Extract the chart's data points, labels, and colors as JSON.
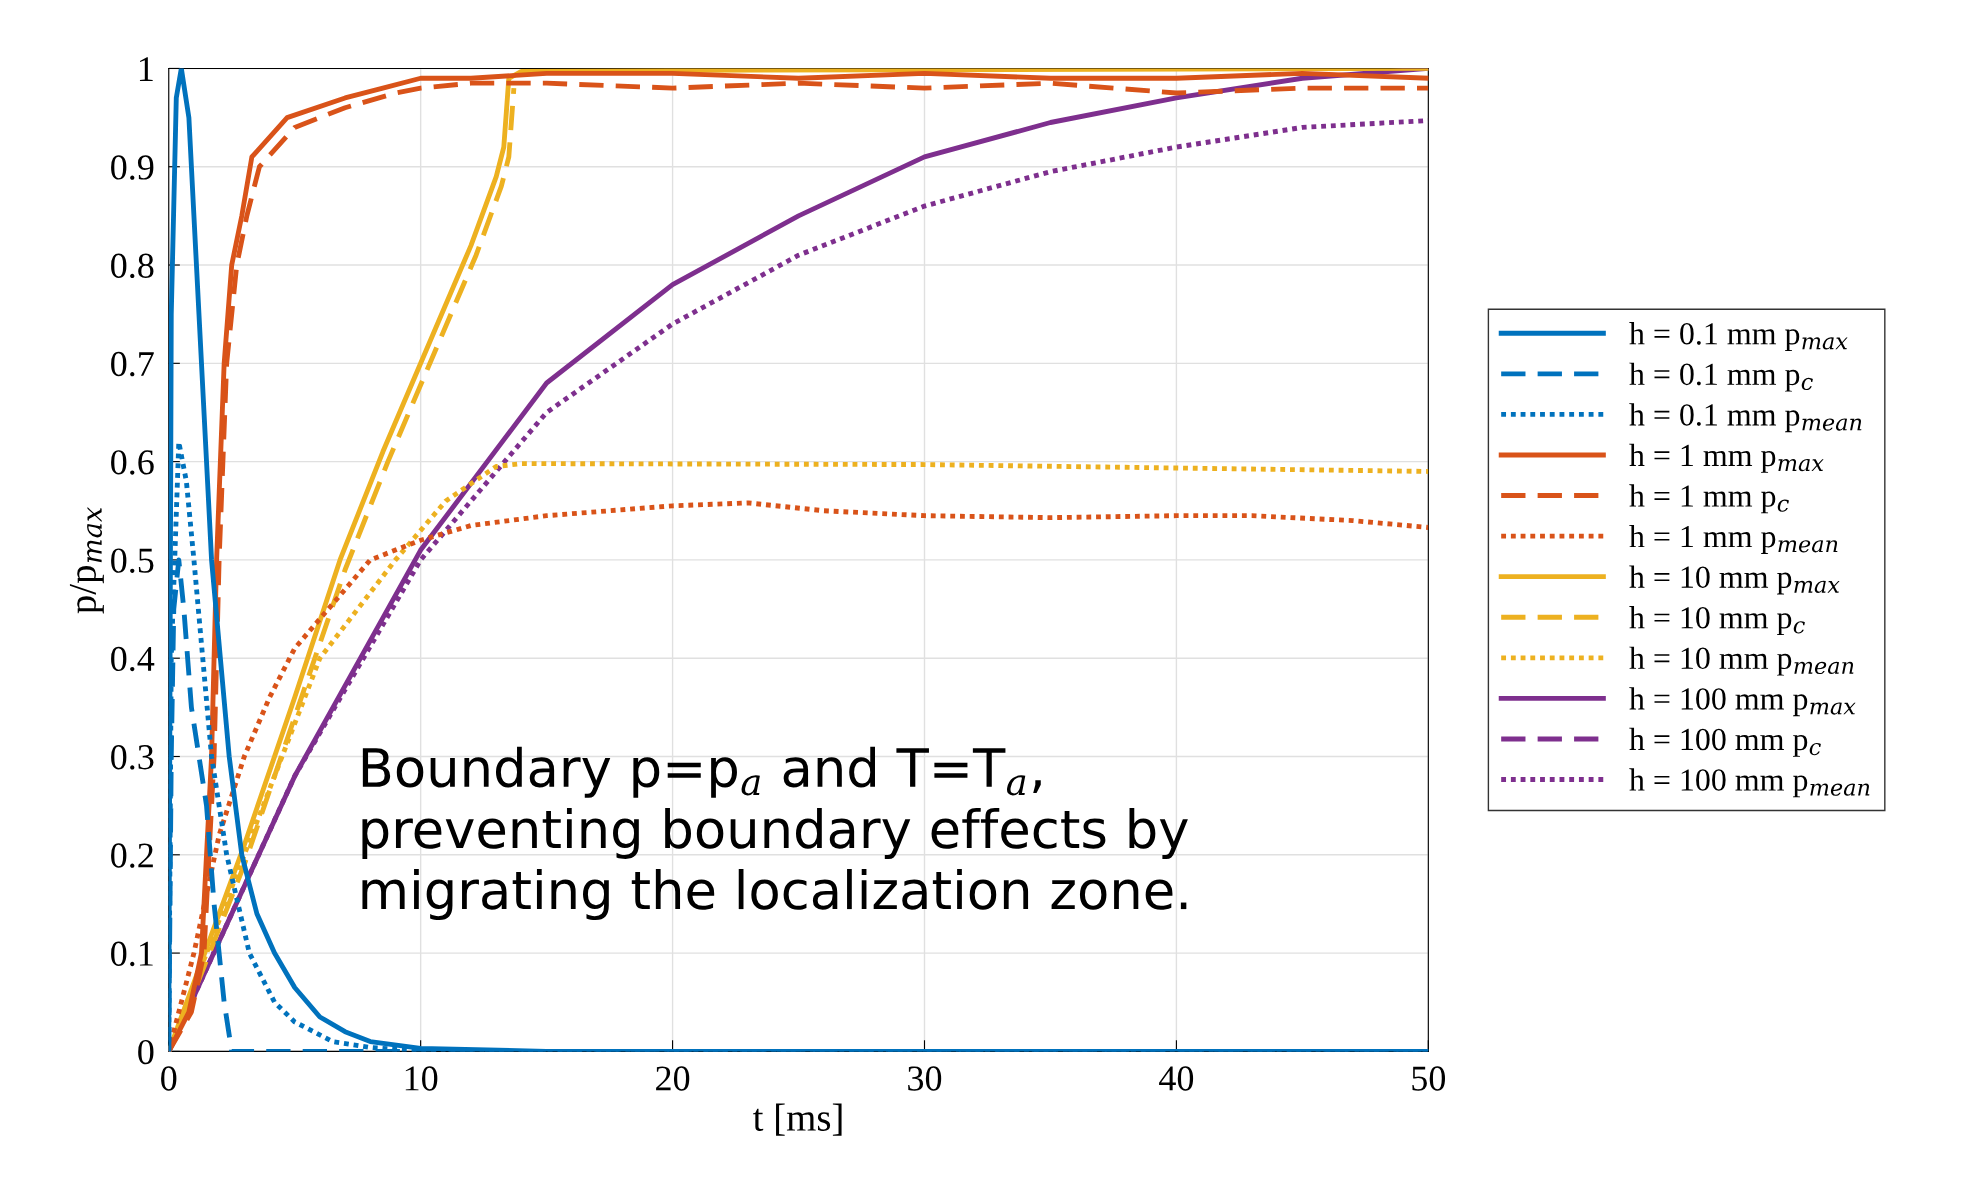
{
  "chart_data": {
    "type": "line",
    "xlabel": "t [ms]",
    "ylabel": "p/p$_{max}$",
    "xlim": [
      0,
      50
    ],
    "xticks": [
      0,
      10,
      20,
      30,
      40,
      50
    ],
    "ylim": [
      0,
      1
    ],
    "yticks": [
      0,
      0.1,
      0.2,
      0.3,
      0.4,
      0.5,
      0.6,
      0.7,
      0.8,
      0.9,
      1
    ],
    "grid": true,
    "legend": "right",
    "marker": "none",
    "annotations": [
      "Boundary p=p$_{a}$ and T=T$_{a}$,\npreventing boundary effects by\nmigrating the localization zone."
    ],
    "series": [
      {
        "name": "h = 0.1 mm p$_{max}$",
        "color": "#0072bd",
        "line_style": "solid",
        "x": [
          0,
          0.1,
          0.3,
          0.5,
          0.8,
          1.2,
          1.7,
          2.4,
          2.9,
          3.5,
          4.2,
          5,
          6,
          7,
          8,
          10,
          15,
          50
        ],
        "values": [
          0,
          0.75,
          0.97,
          1.0,
          0.95,
          0.75,
          0.5,
          0.3,
          0.2,
          0.14,
          0.1,
          0.065,
          0.035,
          0.02,
          0.01,
          0.003,
          0,
          0
        ]
      },
      {
        "name": "h = 0.1 mm p$_{c}$",
        "color": "#0072bd",
        "line_style": "dashed",
        "x": [
          0,
          0.1,
          0.2,
          0.4,
          0.6,
          0.9,
          1.2,
          1.5,
          1.8,
          2.2,
          2.5,
          50
        ],
        "values": [
          0,
          0.3,
          0.45,
          0.5,
          0.45,
          0.35,
          0.3,
          0.25,
          0.15,
          0.05,
          0,
          0
        ]
      },
      {
        "name": "h = 0.1 mm p$_{mean}$",
        "color": "#0072bd",
        "line_style": "dotted",
        "x": [
          0,
          0.1,
          0.4,
          0.7,
          1.0,
          1.7,
          2.3,
          3.2,
          4.2,
          5,
          6.5,
          8,
          10,
          50
        ],
        "values": [
          0,
          0.4,
          0.62,
          0.58,
          0.5,
          0.3,
          0.2,
          0.1,
          0.05,
          0.03,
          0.01,
          0.004,
          0,
          0
        ]
      },
      {
        "name": "h = 1 mm p$_{max}$",
        "color": "#d95319",
        "line_style": "solid",
        "x": [
          0,
          0.8,
          1.3,
          1.7,
          1.9,
          2.2,
          2.5,
          2.9,
          3.3,
          4.7,
          7,
          8.5,
          10,
          12,
          15,
          20,
          25,
          30,
          35,
          40,
          45,
          50
        ],
        "values": [
          0,
          0.04,
          0.1,
          0.3,
          0.5,
          0.7,
          0.8,
          0.85,
          0.91,
          0.95,
          0.97,
          0.98,
          0.99,
          0.99,
          0.995,
          0.995,
          0.99,
          0.995,
          0.99,
          0.99,
          0.995,
          0.99
        ]
      },
      {
        "name": "h = 1 mm p$_{c}$",
        "color": "#d95319",
        "line_style": "dashed",
        "x": [
          0,
          0.9,
          1.4,
          1.8,
          2.0,
          2.3,
          2.7,
          3.1,
          3.6,
          5,
          7,
          9,
          10,
          12,
          15,
          20,
          25,
          30,
          35,
          40,
          45,
          50
        ],
        "values": [
          0,
          0.04,
          0.1,
          0.3,
          0.5,
          0.7,
          0.8,
          0.85,
          0.9,
          0.94,
          0.96,
          0.975,
          0.98,
          0.985,
          0.985,
          0.98,
          0.985,
          0.98,
          0.985,
          0.975,
          0.98,
          0.98
        ]
      },
      {
        "name": "h = 1 mm p$_{mean}$",
        "color": "#d95319",
        "line_style": "dotted",
        "x": [
          0,
          1,
          2,
          3,
          4,
          5,
          6,
          7,
          8,
          10,
          12,
          15,
          20,
          23,
          26,
          30,
          35,
          40,
          43,
          47,
          50
        ],
        "values": [
          0,
          0.1,
          0.22,
          0.3,
          0.36,
          0.41,
          0.44,
          0.47,
          0.5,
          0.52,
          0.535,
          0.545,
          0.555,
          0.558,
          0.55,
          0.545,
          0.543,
          0.545,
          0.545,
          0.54,
          0.533
        ]
      },
      {
        "name": "h = 10 mm p$_{max}$",
        "color": "#edb120",
        "line_style": "solid",
        "x": [
          0,
          1,
          3,
          5,
          6.8,
          8.5,
          10,
          12,
          13,
          13.3,
          13.5,
          14,
          20,
          50
        ],
        "values": [
          0,
          0.07,
          0.21,
          0.36,
          0.5,
          0.61,
          0.7,
          0.82,
          0.89,
          0.92,
          0.99,
          0.997,
          0.998,
          1.0
        ]
      },
      {
        "name": "h = 10 mm p$_{c}$",
        "color": "#edb120",
        "line_style": "dashed",
        "x": [
          0,
          1,
          3,
          5,
          7,
          8.7,
          10.2,
          12.2,
          13.2,
          13.5,
          13.7
        ],
        "values": [
          0,
          0.06,
          0.19,
          0.34,
          0.49,
          0.6,
          0.69,
          0.81,
          0.88,
          0.91,
          0.98
        ]
      },
      {
        "name": "h = 10 mm p$_{mean}$",
        "color": "#edb120",
        "line_style": "dotted",
        "x": [
          0,
          3,
          6,
          9,
          11,
          13,
          14,
          30,
          50
        ],
        "values": [
          0,
          0.2,
          0.4,
          0.5,
          0.56,
          0.595,
          0.598,
          0.597,
          0.59
        ]
      },
      {
        "name": "h = 100 mm p$_{max}$",
        "color": "#7e2f8e",
        "line_style": "solid",
        "x": [
          0,
          5,
          10,
          15,
          20,
          25,
          30,
          35,
          40,
          45,
          50
        ],
        "values": [
          0,
          0.28,
          0.51,
          0.68,
          0.78,
          0.85,
          0.91,
          0.945,
          0.97,
          0.99,
          1.0
        ]
      },
      {
        "name": "h = 100 mm p$_{c}$",
        "color": "#7e2f8e",
        "line_style": "dashed"
      },
      {
        "name": "h = 100 mm p$_{mean}$",
        "color": "#7e2f8e",
        "line_style": "dotted",
        "x": [
          0,
          5,
          10,
          15,
          20,
          25,
          30,
          35,
          40,
          45,
          50
        ],
        "values": [
          0,
          0.28,
          0.5,
          0.65,
          0.74,
          0.81,
          0.86,
          0.895,
          0.92,
          0.94,
          0.947
        ]
      }
    ]
  }
}
